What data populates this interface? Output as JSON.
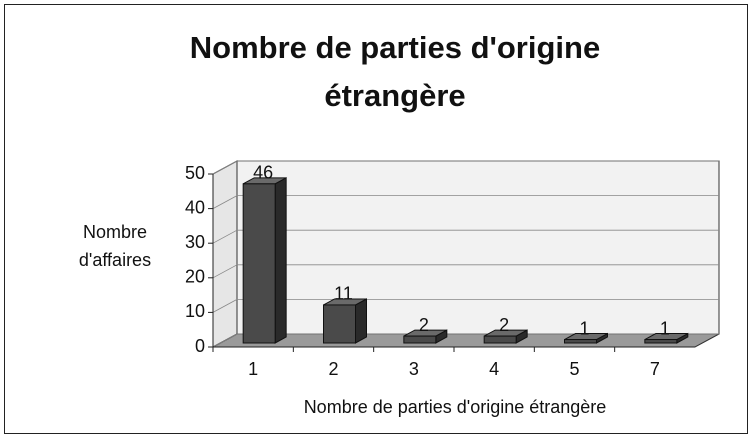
{
  "chart_data": {
    "type": "bar",
    "title": "Nombre de parties d'origine étrangère",
    "x_label": "Nombre de parties d'origine étrangère",
    "y_label": "Nombre d'affaires",
    "categories": [
      "1",
      "2",
      "3",
      "4",
      "5",
      "7"
    ],
    "values": [
      46,
      11,
      2,
      2,
      1,
      1
    ],
    "color": "#4a4a4a",
    "ylim": [
      0,
      50
    ],
    "yticks": [
      0,
      10,
      20,
      30,
      40,
      50
    ],
    "grid": true
  }
}
